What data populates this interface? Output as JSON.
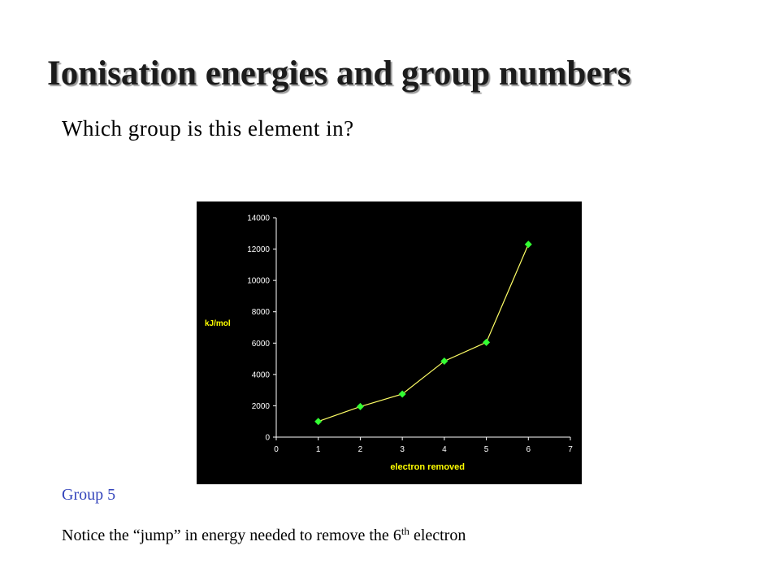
{
  "slide": {
    "title": "Ionisation energies and group numbers",
    "question": "Which group is this element in?",
    "answer": "Group 5",
    "note_before": "Notice the “jump” in energy needed to remove the 6",
    "note_sup": "th",
    "note_after": " electron"
  },
  "chart_data": {
    "type": "line",
    "x": [
      1,
      2,
      3,
      4,
      5,
      6
    ],
    "series": [
      {
        "values": [
          1000,
          1950,
          2750,
          4850,
          6050,
          12300
        ]
      }
    ],
    "xlabel": "electron removed",
    "ylabel": "kJ/mol",
    "xlim": [
      0,
      7
    ],
    "ylim": [
      0,
      14000
    ],
    "xticks": [
      0,
      1,
      2,
      3,
      4,
      5,
      6,
      7
    ],
    "yticks": [
      0,
      2000,
      4000,
      6000,
      8000,
      10000,
      12000,
      14000
    ],
    "grid": false,
    "legend": "none",
    "colors": {
      "background": "#000000",
      "axis": "#ffffff",
      "line": "#ffff66",
      "marker": "#33ff33",
      "axis_label": "#ffff00"
    }
  }
}
